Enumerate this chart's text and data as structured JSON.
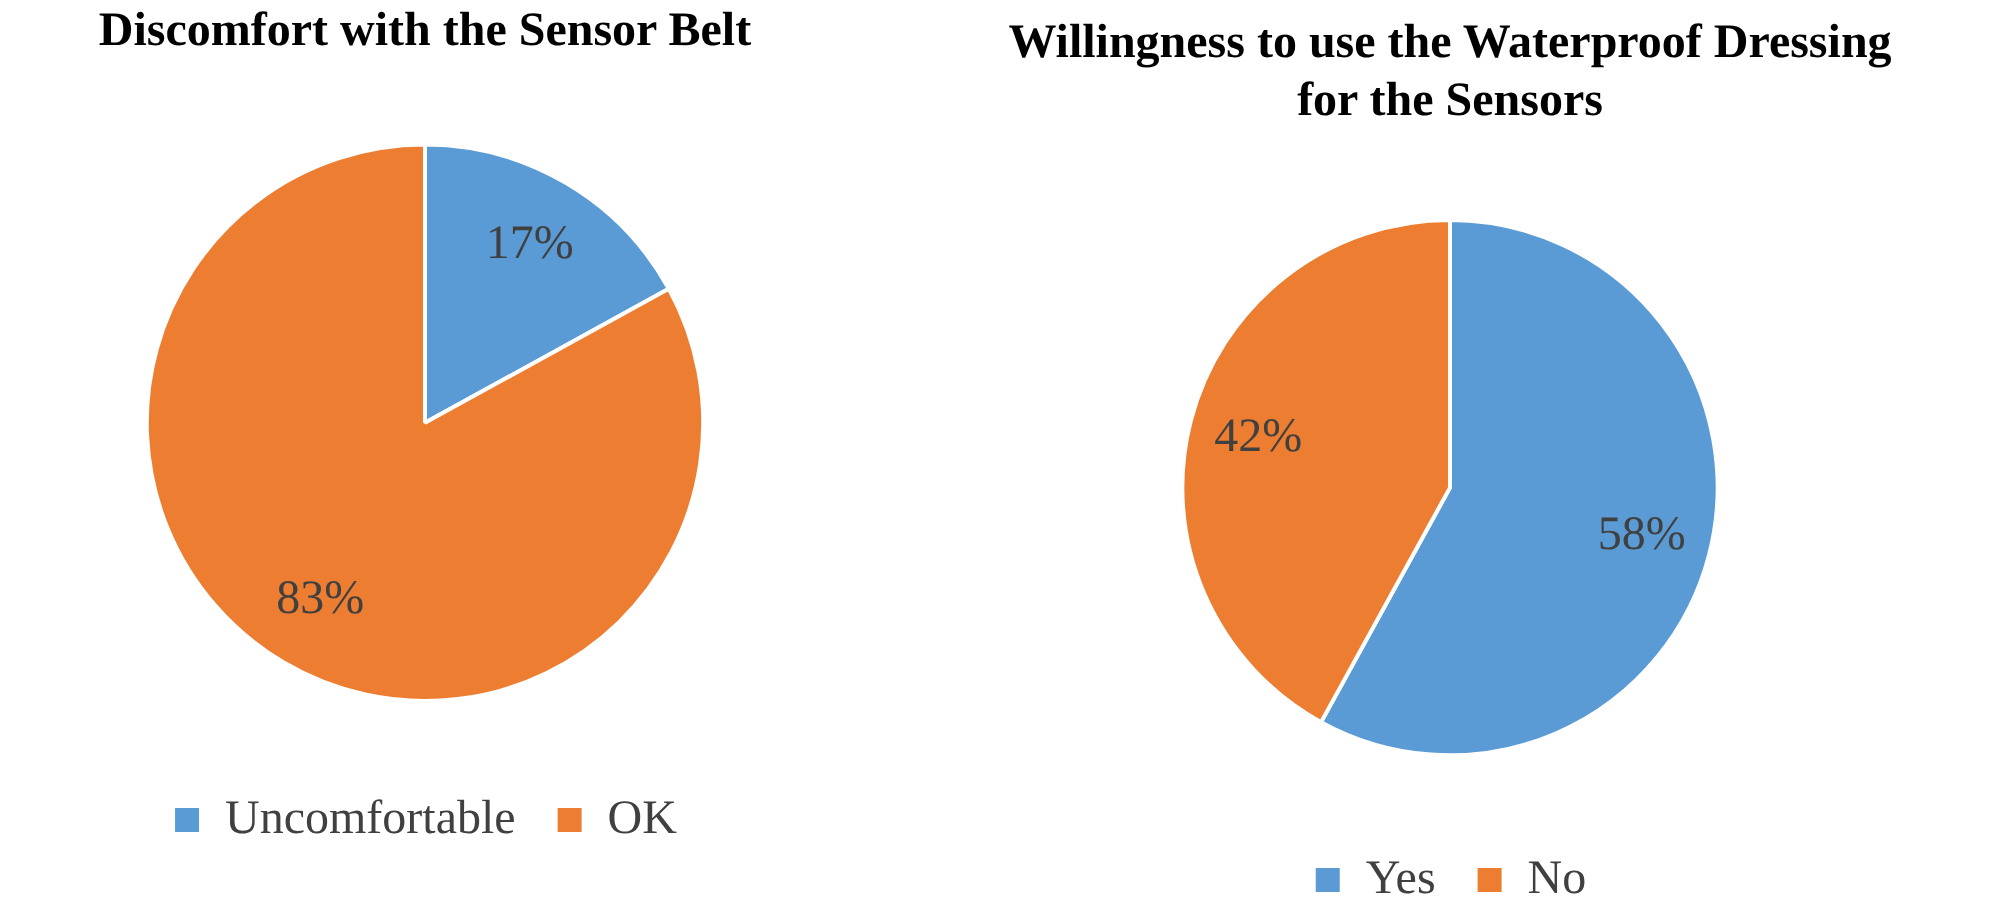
{
  "chart_data": [
    {
      "type": "pie",
      "title": "Discomfort with the Sensor Belt",
      "categories": [
        "Uncomfortable",
        "OK"
      ],
      "values": [
        17,
        83
      ],
      "colors": [
        "#5b9bd5",
        "#ed7d31"
      ],
      "value_labels": [
        "17%",
        "83%"
      ],
      "legend": "bottom"
    },
    {
      "type": "pie",
      "title": "Willingness to use the Waterproof Dressing for the Sensors",
      "categories": [
        "Yes",
        "No"
      ],
      "values": [
        58,
        42
      ],
      "colors": [
        "#5b9bd5",
        "#ed7d31"
      ],
      "value_labels": [
        "58%",
        "42%"
      ],
      "legend": "bottom"
    }
  ]
}
